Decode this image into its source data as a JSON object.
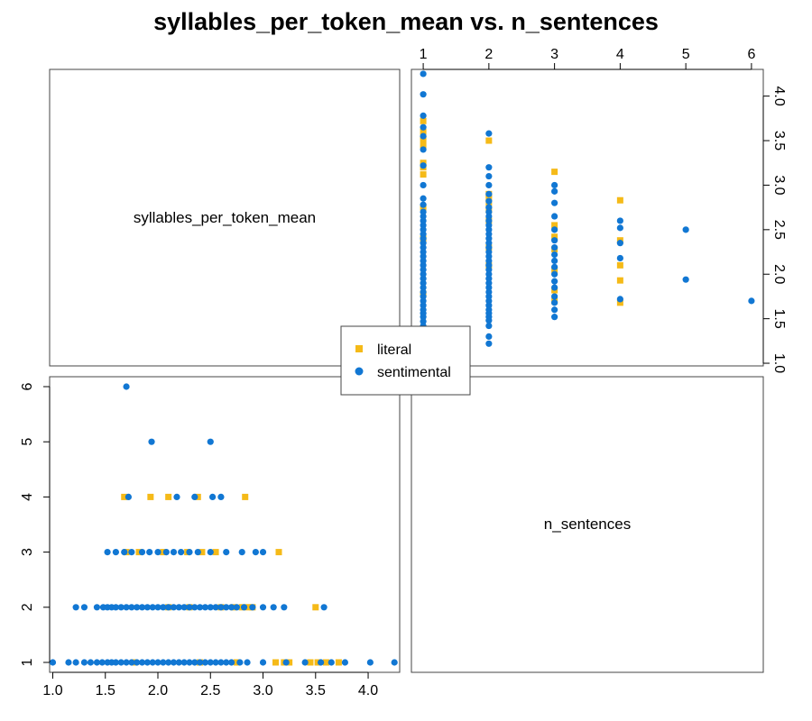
{
  "chart_data": {
    "type": "scatter",
    "title": "syllables_per_token_mean vs. n_sentences",
    "variables": [
      "syllables_per_token_mean",
      "n_sentences"
    ],
    "syllables_ticks": [
      "1.0",
      "1.5",
      "2.0",
      "2.5",
      "3.0",
      "3.5",
      "4.0"
    ],
    "sentences_ticks": [
      "1",
      "2",
      "3",
      "4",
      "5",
      "6"
    ],
    "syllables_range": [
      0.97,
      4.3
    ],
    "sentences_range": [
      0.82,
      6.18
    ],
    "legend": {
      "position": "center",
      "items": [
        {
          "label": "literal",
          "color": "#F5BA18",
          "marker": "square"
        },
        {
          "label": "sentimental",
          "color": "#1177D3",
          "marker": "circle"
        }
      ]
    },
    "series": [
      {
        "name": "literal",
        "color": "#F5BA18",
        "marker": "square",
        "points": [
          [
            3.12,
            1
          ],
          [
            3.2,
            1
          ],
          [
            3.25,
            1
          ],
          [
            3.45,
            1
          ],
          [
            3.52,
            1
          ],
          [
            3.6,
            1
          ],
          [
            3.72,
            1
          ],
          [
            1.78,
            1
          ],
          [
            2.4,
            1
          ],
          [
            2.75,
            1
          ],
          [
            2.6,
            2
          ],
          [
            2.72,
            2
          ],
          [
            2.8,
            2
          ],
          [
            2.86,
            2
          ],
          [
            2.9,
            2
          ],
          [
            3.5,
            2
          ],
          [
            2.1,
            2
          ],
          [
            2.3,
            2
          ],
          [
            1.7,
            3
          ],
          [
            1.82,
            3
          ],
          [
            2.05,
            3
          ],
          [
            2.28,
            3
          ],
          [
            2.42,
            3
          ],
          [
            2.55,
            3
          ],
          [
            3.15,
            3
          ],
          [
            1.68,
            4
          ],
          [
            1.93,
            4
          ],
          [
            2.1,
            4
          ],
          [
            2.38,
            4
          ],
          [
            2.83,
            4
          ]
        ]
      },
      {
        "name": "sentimental",
        "color": "#1177D3",
        "marker": "circle",
        "points": [
          [
            1.0,
            1
          ],
          [
            1.15,
            1
          ],
          [
            1.22,
            1
          ],
          [
            1.3,
            1
          ],
          [
            1.36,
            1
          ],
          [
            1.42,
            1
          ],
          [
            1.47,
            1
          ],
          [
            1.52,
            1
          ],
          [
            1.56,
            1
          ],
          [
            1.6,
            1
          ],
          [
            1.65,
            1
          ],
          [
            1.7,
            1
          ],
          [
            1.75,
            1
          ],
          [
            1.8,
            1
          ],
          [
            1.85,
            1
          ],
          [
            1.9,
            1
          ],
          [
            1.95,
            1
          ],
          [
            2.0,
            1
          ],
          [
            2.05,
            1
          ],
          [
            2.1,
            1
          ],
          [
            2.15,
            1
          ],
          [
            2.2,
            1
          ],
          [
            2.25,
            1
          ],
          [
            2.3,
            1
          ],
          [
            2.35,
            1
          ],
          [
            2.4,
            1
          ],
          [
            2.45,
            1
          ],
          [
            2.5,
            1
          ],
          [
            2.55,
            1
          ],
          [
            2.6,
            1
          ],
          [
            2.65,
            1
          ],
          [
            2.7,
            1
          ],
          [
            2.78,
            1
          ],
          [
            2.85,
            1
          ],
          [
            3.0,
            1
          ],
          [
            3.22,
            1
          ],
          [
            3.4,
            1
          ],
          [
            3.55,
            1
          ],
          [
            3.65,
            1
          ],
          [
            3.78,
            1
          ],
          [
            4.02,
            1
          ],
          [
            4.25,
            1
          ],
          [
            1.22,
            2
          ],
          [
            1.3,
            2
          ],
          [
            1.42,
            2
          ],
          [
            1.48,
            2
          ],
          [
            1.52,
            2
          ],
          [
            1.56,
            2
          ],
          [
            1.6,
            2
          ],
          [
            1.65,
            2
          ],
          [
            1.7,
            2
          ],
          [
            1.75,
            2
          ],
          [
            1.8,
            2
          ],
          [
            1.85,
            2
          ],
          [
            1.9,
            2
          ],
          [
            1.95,
            2
          ],
          [
            2.0,
            2
          ],
          [
            2.05,
            2
          ],
          [
            2.1,
            2
          ],
          [
            2.15,
            2
          ],
          [
            2.2,
            2
          ],
          [
            2.25,
            2
          ],
          [
            2.3,
            2
          ],
          [
            2.35,
            2
          ],
          [
            2.4,
            2
          ],
          [
            2.45,
            2
          ],
          [
            2.5,
            2
          ],
          [
            2.55,
            2
          ],
          [
            2.6,
            2
          ],
          [
            2.65,
            2
          ],
          [
            2.7,
            2
          ],
          [
            2.75,
            2
          ],
          [
            2.82,
            2
          ],
          [
            2.9,
            2
          ],
          [
            3.0,
            2
          ],
          [
            3.1,
            2
          ],
          [
            3.2,
            2
          ],
          [
            3.58,
            2
          ],
          [
            1.52,
            3
          ],
          [
            1.6,
            3
          ],
          [
            1.68,
            3
          ],
          [
            1.75,
            3
          ],
          [
            1.85,
            3
          ],
          [
            1.92,
            3
          ],
          [
            2.0,
            3
          ],
          [
            2.08,
            3
          ],
          [
            2.15,
            3
          ],
          [
            2.22,
            3
          ],
          [
            2.3,
            3
          ],
          [
            2.38,
            3
          ],
          [
            2.5,
            3
          ],
          [
            2.65,
            3
          ],
          [
            2.8,
            3
          ],
          [
            2.93,
            3
          ],
          [
            3.0,
            3
          ],
          [
            1.72,
            4
          ],
          [
            2.18,
            4
          ],
          [
            2.35,
            4
          ],
          [
            2.52,
            4
          ],
          [
            2.6,
            4
          ],
          [
            1.94,
            5
          ],
          [
            2.5,
            5
          ],
          [
            1.7,
            6
          ]
        ]
      }
    ]
  }
}
